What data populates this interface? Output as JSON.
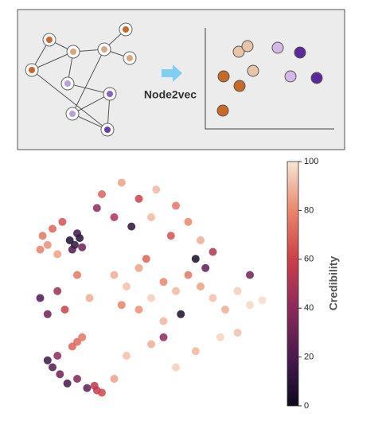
{
  "diagram": {
    "label": "Node2vec"
  },
  "chart_data": {
    "type": "scatter",
    "x": [
      17,
      19,
      21,
      18,
      20,
      22,
      6,
      8,
      10,
      12,
      5,
      14,
      30,
      38,
      45,
      52,
      60,
      65,
      35,
      42,
      50,
      58,
      70,
      28,
      35,
      40,
      45,
      50,
      55,
      60,
      65,
      70,
      75,
      80,
      85,
      90,
      95,
      45,
      55,
      62,
      68,
      72,
      48,
      38,
      12,
      15,
      8,
      20,
      25,
      20,
      22,
      18,
      10,
      13,
      16,
      20,
      24,
      12,
      8,
      28,
      30,
      27,
      40,
      50,
      60,
      68,
      78,
      85,
      35,
      5,
      90,
      75,
      55
    ],
    "values": [
      70,
      68,
      71,
      66,
      73,
      67,
      72,
      68,
      75,
      64,
      66,
      78,
      90,
      95,
      88,
      92,
      85,
      78,
      80,
      76,
      80,
      72,
      70,
      84,
      55,
      50,
      58,
      45,
      52,
      48,
      55,
      50,
      45,
      40,
      48,
      42,
      44,
      40,
      35,
      38,
      62,
      58,
      62,
      42,
      48,
      40,
      38,
      55,
      45,
      26,
      28,
      24,
      15,
      12,
      8,
      10,
      6,
      20,
      18,
      5,
      4,
      7,
      20,
      25,
      15,
      22,
      28,
      30,
      10,
      45,
      55,
      65,
      28
    ],
    "color_values": [
      5,
      12,
      8,
      20,
      15,
      30,
      75,
      82,
      70,
      85,
      78,
      65,
      70,
      85,
      60,
      90,
      75,
      80,
      50,
      10,
      90,
      65,
      88,
      40,
      88,
      92,
      85,
      95,
      80,
      90,
      75,
      85,
      92,
      88,
      95,
      97,
      98,
      82,
      90,
      5,
      3,
      25,
      70,
      78,
      45,
      60,
      30,
      75,
      88,
      72,
      75,
      70,
      22,
      30,
      18,
      35,
      25,
      40,
      15,
      58,
      62,
      55,
      92,
      88,
      95,
      90,
      96,
      92,
      85,
      20,
      30,
      50,
      40
    ],
    "xlim": [
      0,
      100
    ],
    "ylim": [
      0,
      100
    ],
    "colormap": [
      "#0d0a1e",
      "#4a1a4f",
      "#8b2a5a",
      "#cc3f4a",
      "#e9876a",
      "#f7e6d6"
    ],
    "clim": [
      0,
      100
    ],
    "cticks": [
      0,
      20,
      40,
      60,
      80,
      100
    ],
    "colorbar_label": "Credibility"
  }
}
